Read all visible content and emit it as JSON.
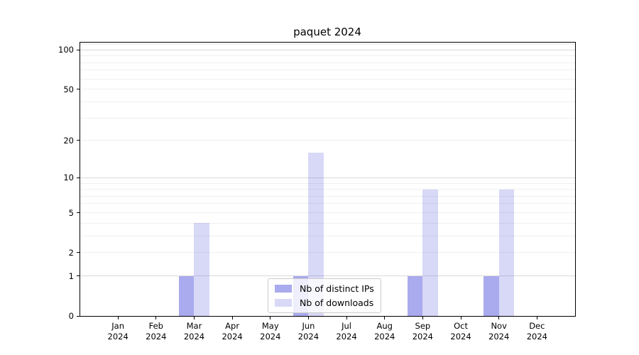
{
  "chart_data": {
    "type": "bar",
    "title": "paquet 2024",
    "categories": [
      "Jan",
      "Feb",
      "Mar",
      "Apr",
      "May",
      "Jun",
      "Jul",
      "Aug",
      "Sep",
      "Oct",
      "Nov",
      "Dec"
    ],
    "category_year": "2024",
    "series": [
      {
        "name": "Nb of distinct IPs",
        "color": "rgba(85,85,221,0.50)",
        "values": [
          0,
          0,
          1,
          0,
          0,
          1,
          0,
          0,
          1,
          0,
          1,
          0
        ]
      },
      {
        "name": "Nb of downloads",
        "color": "rgba(85,85,221,0.23)",
        "values": [
          0,
          0,
          4,
          0,
          0,
          16,
          0,
          0,
          8,
          0,
          8,
          0
        ]
      }
    ],
    "xlabel": "",
    "ylabel": "",
    "yscale": "log1p",
    "ylim": [
      0,
      115
    ],
    "yticks": [
      0,
      1,
      2,
      5,
      10,
      20,
      50,
      100
    ],
    "grid": {
      "major": [
        1,
        10,
        100
      ],
      "minor": [
        2,
        3,
        4,
        5,
        6,
        7,
        8,
        9,
        20,
        30,
        40,
        50,
        60,
        70,
        80,
        90,
        110
      ]
    },
    "legend_position": "lower center",
    "colors": {
      "spine": "#000000",
      "grid_major": "#d9d9d9",
      "grid_minor": "#efefef",
      "background": "#ffffff"
    }
  }
}
